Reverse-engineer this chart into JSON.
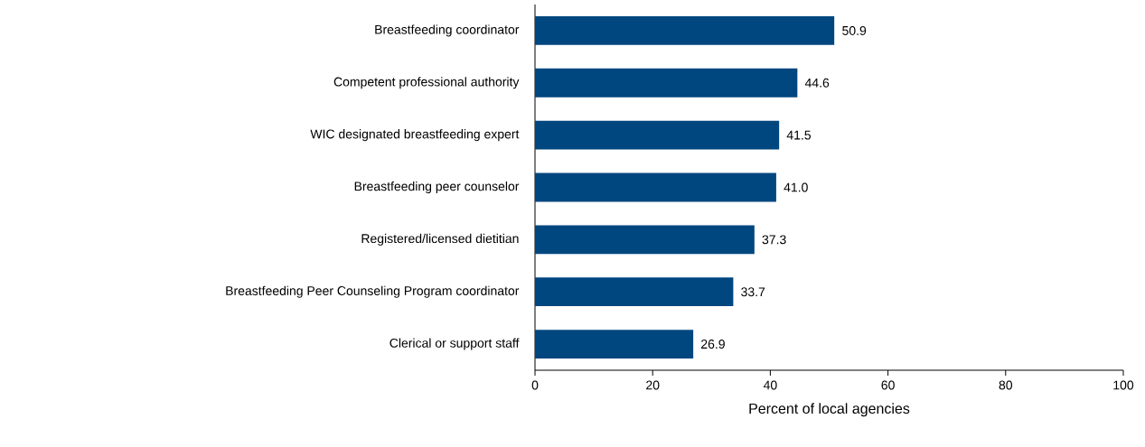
{
  "chart_data": {
    "type": "bar",
    "orientation": "horizontal",
    "xlabel": "Percent of local agencies",
    "categories": [
      "Breastfeeding coordinator",
      "Competent professional authority",
      "WIC designated breastfeeding expert",
      "Breastfeeding peer counselor",
      "Registered/licensed dietitian",
      "Breastfeeding Peer Counseling Program coordinator",
      "Clerical or support staff"
    ],
    "values": [
      50.9,
      44.6,
      41.5,
      41.0,
      37.3,
      33.7,
      26.9
    ],
    "value_labels": [
      "50.9",
      "44.6",
      "41.5",
      "41.0",
      "37.3",
      "33.7",
      "26.9"
    ],
    "color": "#00467f",
    "xlim": [
      0,
      100
    ],
    "xticks": [
      0,
      20,
      40,
      60,
      80,
      100
    ],
    "grid": false
  }
}
